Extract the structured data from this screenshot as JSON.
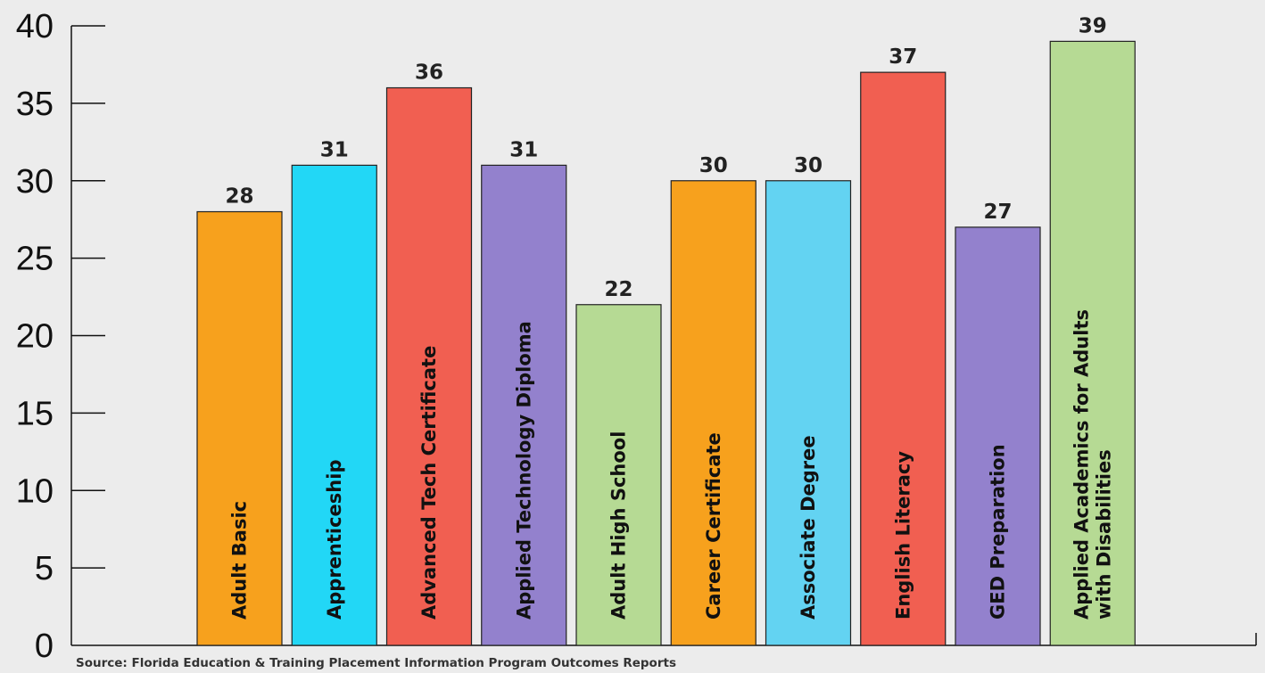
{
  "chart_data": {
    "type": "bar",
    "title": "",
    "xlabel": "",
    "ylabel": "",
    "ylim": [
      0,
      40
    ],
    "y_ticks": [
      0,
      5,
      10,
      15,
      20,
      25,
      30,
      35,
      40
    ],
    "grid": false,
    "legend": "none",
    "categories": [
      "Adult Basic",
      "Apprenticeship",
      "Advanced Tech Certificate",
      "Applied Technology Diploma",
      "Adult High School",
      "Career Certificate",
      "Associate Degree",
      "English Literacy",
      "GED Preparation",
      "Applied Academics for Adults with Disabilities"
    ],
    "category_label_lines": [
      [
        "Adult Basic"
      ],
      [
        "Apprenticeship"
      ],
      [
        "Advanced Tech Certificate"
      ],
      [
        "Applied Technology Diploma"
      ],
      [
        "Adult High School"
      ],
      [
        "Career Certificate"
      ],
      [
        "Associate Degree"
      ],
      [
        "English Literacy"
      ],
      [
        "GED Preparation"
      ],
      [
        "Applied Academics for Adults",
        "with Disabilities"
      ]
    ],
    "values": [
      28,
      31,
      36,
      31,
      22,
      30,
      30,
      37,
      27,
      39
    ],
    "colors": [
      "#f7a11d",
      "#22d7f6",
      "#f15f51",
      "#9381cd",
      "#b6da94",
      "#f7a11d",
      "#63d3f2",
      "#f15f51",
      "#9381cd",
      "#b6da94"
    ],
    "source": "Source:  Florida Education & Training Placement Information Program Outcomes Reports"
  }
}
